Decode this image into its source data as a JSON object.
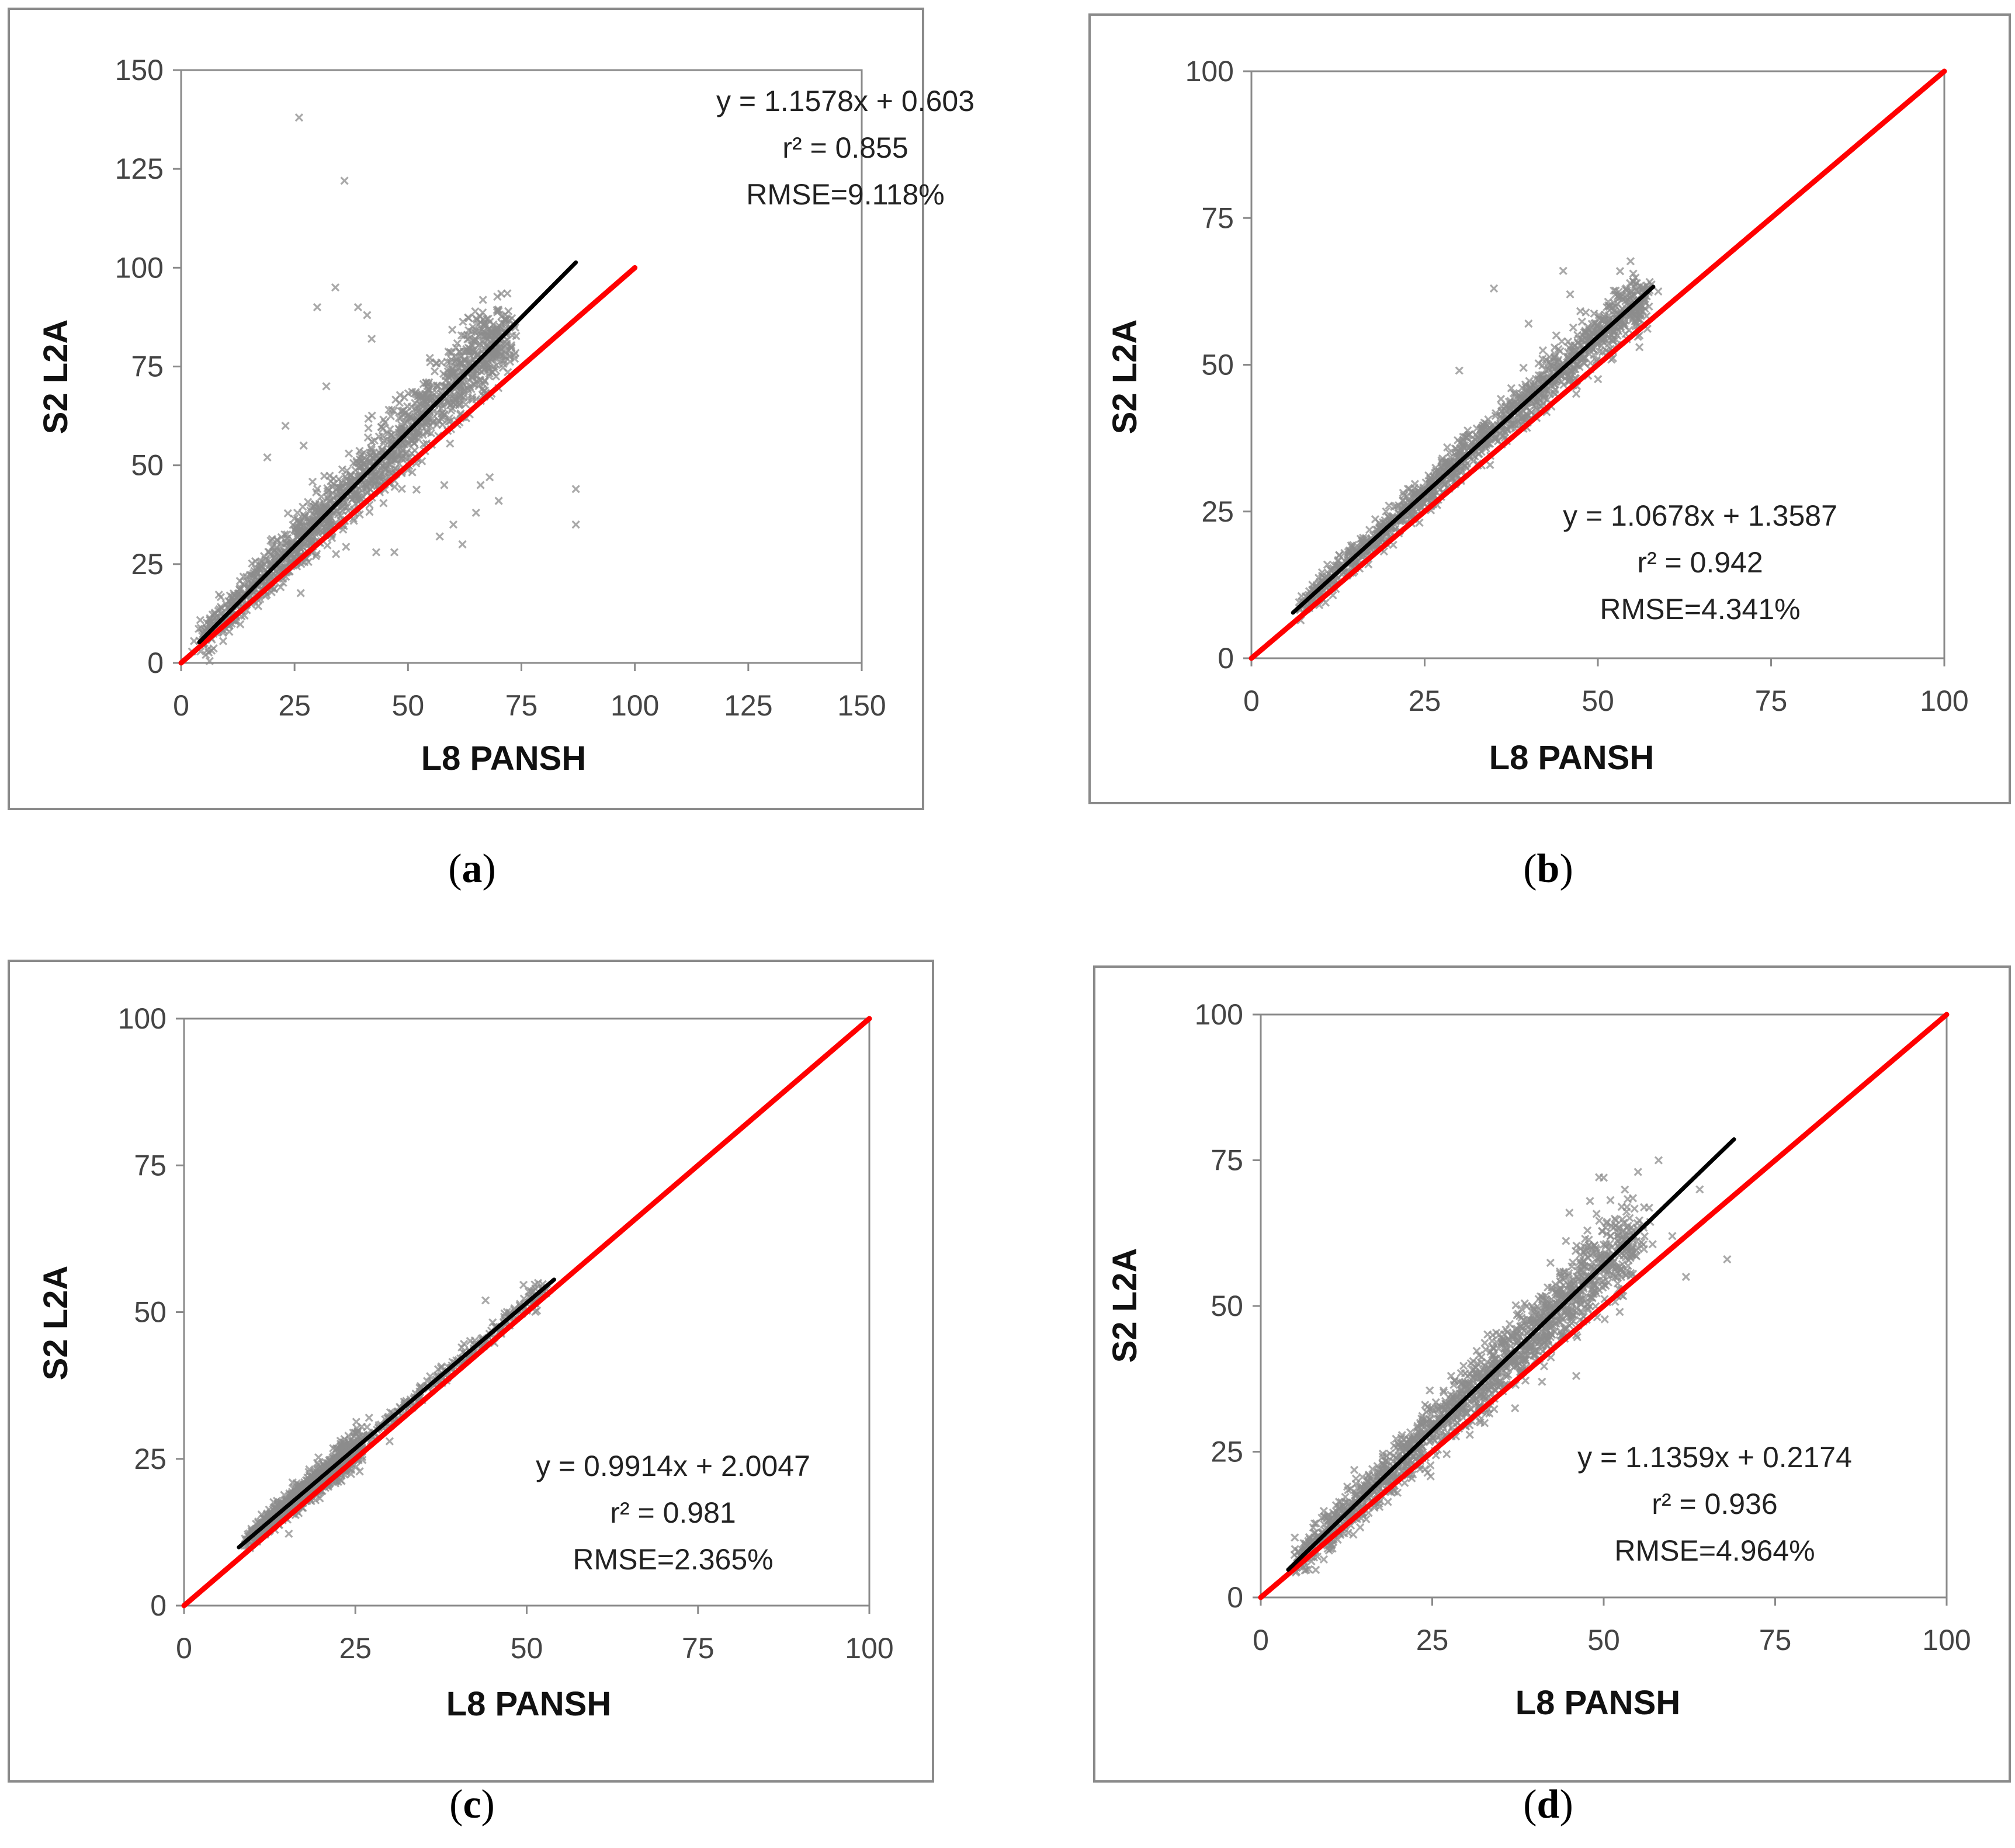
{
  "chart_data": [
    {
      "type": "scatter",
      "panel": "a",
      "xlabel": "L8 PANSH",
      "ylabel": "S2 L2A",
      "xlim": [
        0,
        150
      ],
      "ylim": [
        0,
        150
      ],
      "xticks": [
        0,
        25,
        50,
        75,
        100,
        125,
        150
      ],
      "yticks": [
        0,
        25,
        50,
        75,
        100,
        125,
        150
      ],
      "annotations": [
        "y = 1.1578x + 0.603",
        "r² = 0.855",
        "RMSE=9.118%"
      ],
      "fit": {
        "slope": 1.1578,
        "intercept": 0.603,
        "x_range": [
          4,
          87
        ]
      },
      "identity_line": {
        "x_range": [
          0,
          100
        ]
      },
      "cloud": {
        "x_range": [
          4,
          72
        ],
        "spread": 4.5,
        "point_count": 1500
      },
      "outliers": [
        [
          26,
          138
        ],
        [
          36,
          122
        ],
        [
          34,
          95
        ],
        [
          30,
          90
        ],
        [
          39,
          90
        ],
        [
          41,
          88
        ],
        [
          42,
          82
        ],
        [
          32,
          70
        ],
        [
          87,
          44
        ],
        [
          87,
          35
        ],
        [
          68,
          47
        ],
        [
          70,
          41
        ],
        [
          66,
          45
        ],
        [
          62,
          30
        ],
        [
          57,
          32
        ],
        [
          43,
          28
        ],
        [
          47,
          28
        ],
        [
          23,
          60
        ],
        [
          19,
          52
        ],
        [
          27,
          55
        ],
        [
          65,
          38
        ],
        [
          60,
          35
        ],
        [
          58,
          45
        ]
      ],
      "marker_color": "#8c8c8c",
      "fit_color": "#000000",
      "identity_color": "#ff0000"
    },
    {
      "type": "scatter",
      "panel": "b",
      "xlabel": "L8 PANSH",
      "ylabel": "S2 L2A",
      "xlim": [
        0,
        100
      ],
      "ylim": [
        0,
        100
      ],
      "xticks": [
        0,
        25,
        50,
        75,
        100
      ],
      "yticks": [
        0,
        25,
        50,
        75,
        100
      ],
      "annotations": [
        "y = 1.0678x + 1.3587",
        "r² = 0.942",
        "RMSE=4.341%"
      ],
      "fit": {
        "slope": 1.0678,
        "intercept": 1.3587,
        "x_range": [
          6,
          58
        ]
      },
      "identity_line": {
        "x_range": [
          0,
          100
        ]
      },
      "cloud": {
        "x_range": [
          7,
          57
        ],
        "spread": 1.9,
        "point_count": 1300
      },
      "outliers": [
        [
          35,
          63
        ],
        [
          45,
          66
        ],
        [
          46,
          62
        ],
        [
          56,
          55
        ],
        [
          56,
          53
        ],
        [
          30,
          49
        ],
        [
          42,
          51
        ],
        [
          44,
          55
        ],
        [
          40,
          57
        ]
      ],
      "marker_color": "#8c8c8c",
      "fit_color": "#000000",
      "identity_color": "#ff0000"
    },
    {
      "type": "scatter",
      "panel": "c",
      "xlabel": "L8 PANSH",
      "ylabel": "S2 L2A",
      "xlim": [
        0,
        100
      ],
      "ylim": [
        0,
        100
      ],
      "xticks": [
        0,
        25,
        50,
        75,
        100
      ],
      "yticks": [
        0,
        25,
        50,
        75,
        100
      ],
      "annotations": [
        "y = 0.9914x + 2.0047",
        "r² = 0.981",
        "RMSE=2.365%"
      ],
      "fit": {
        "slope": 0.9914,
        "intercept": 2.0047,
        "x_range": [
          8,
          54
        ]
      },
      "identity_line": {
        "x_range": [
          0,
          100
        ]
      },
      "cloud": {
        "x_range": [
          9,
          26
        ],
        "spread": 1.3,
        "point_count": 900
      },
      "cloud_extra": {
        "x_range": [
          26,
          53
        ],
        "spread": 0.9,
        "point_count": 220
      },
      "outliers": [
        [
          44,
          52
        ],
        [
          27,
          32
        ],
        [
          30,
          28
        ]
      ],
      "marker_color": "#8c8c8c",
      "fit_color": "#000000",
      "identity_color": "#ff0000"
    },
    {
      "type": "scatter",
      "panel": "d",
      "xlabel": "L8 PANSH",
      "ylabel": "S2 L2A",
      "xlim": [
        0,
        100
      ],
      "ylim": [
        0,
        100
      ],
      "xticks": [
        0,
        25,
        50,
        75,
        100
      ],
      "yticks": [
        0,
        25,
        50,
        75,
        100
      ],
      "annotations": [
        "y = 1.1359x + 0.2174",
        "r² = 0.936",
        "RMSE=4.964%"
      ],
      "fit": {
        "slope": 1.1359,
        "intercept": 0.2174,
        "x_range": [
          4,
          69
        ]
      },
      "identity_line": {
        "x_range": [
          0,
          100
        ]
      },
      "cloud": {
        "x_range": [
          5,
          55
        ],
        "spread": 3.0,
        "point_count": 1500
      },
      "outliers": [
        [
          58,
          75
        ],
        [
          55,
          73
        ],
        [
          50,
          72
        ],
        [
          48,
          68
        ],
        [
          60,
          62
        ],
        [
          62,
          55
        ],
        [
          68,
          58
        ],
        [
          64,
          70
        ],
        [
          45,
          66
        ],
        [
          41,
          37
        ],
        [
          46,
          38
        ]
      ],
      "marker_color": "#8c8c8c",
      "fit_color": "#000000",
      "identity_color": "#ff0000"
    }
  ],
  "captions": [
    "a",
    "b",
    "c",
    "d"
  ]
}
